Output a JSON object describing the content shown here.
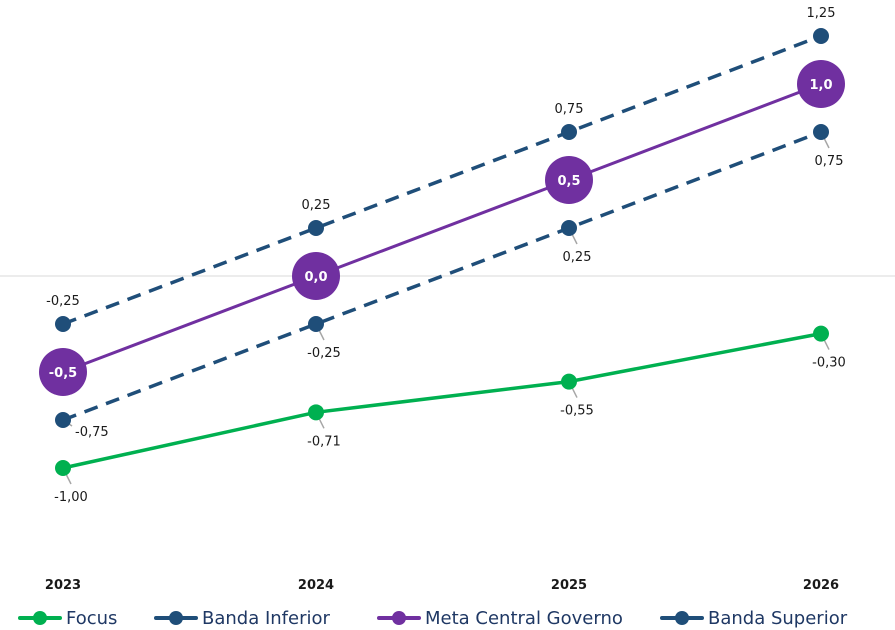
{
  "chart_data": {
    "type": "line",
    "categories": [
      "2023",
      "2024",
      "2025",
      "2026"
    ],
    "ylim": [
      -1.5,
      1.4
    ],
    "grid": false,
    "legend_position": "bottom",
    "series": [
      {
        "name": "Focus",
        "values": [
          -1.0,
          -0.71,
          -0.55,
          -0.3
        ],
        "labels": [
          "-1,00",
          "-0,71",
          "-0,55",
          "-0,30"
        ],
        "color": "#00b050",
        "style": "solid"
      },
      {
        "name": "Banda Inferior",
        "values": [
          -0.75,
          -0.25,
          0.25,
          0.75
        ],
        "labels": [
          "-0,75",
          "-0,25",
          "0,25",
          "0,75"
        ],
        "color": "#1f4e79",
        "style": "dashed"
      },
      {
        "name": "Meta Central Governo",
        "values": [
          -0.5,
          0.0,
          0.5,
          1.0
        ],
        "labels": [
          "-0,5",
          "0,0",
          "0,5",
          "1,0"
        ],
        "color": "#7030a0",
        "style": "solid"
      },
      {
        "name": "Banda Superior",
        "values": [
          -0.25,
          0.25,
          0.75,
          1.25
        ],
        "labels": [
          "-0,25",
          "0,25",
          "0,75",
          "1,25"
        ],
        "color": "#1f4e79",
        "style": "dashed"
      }
    ]
  }
}
